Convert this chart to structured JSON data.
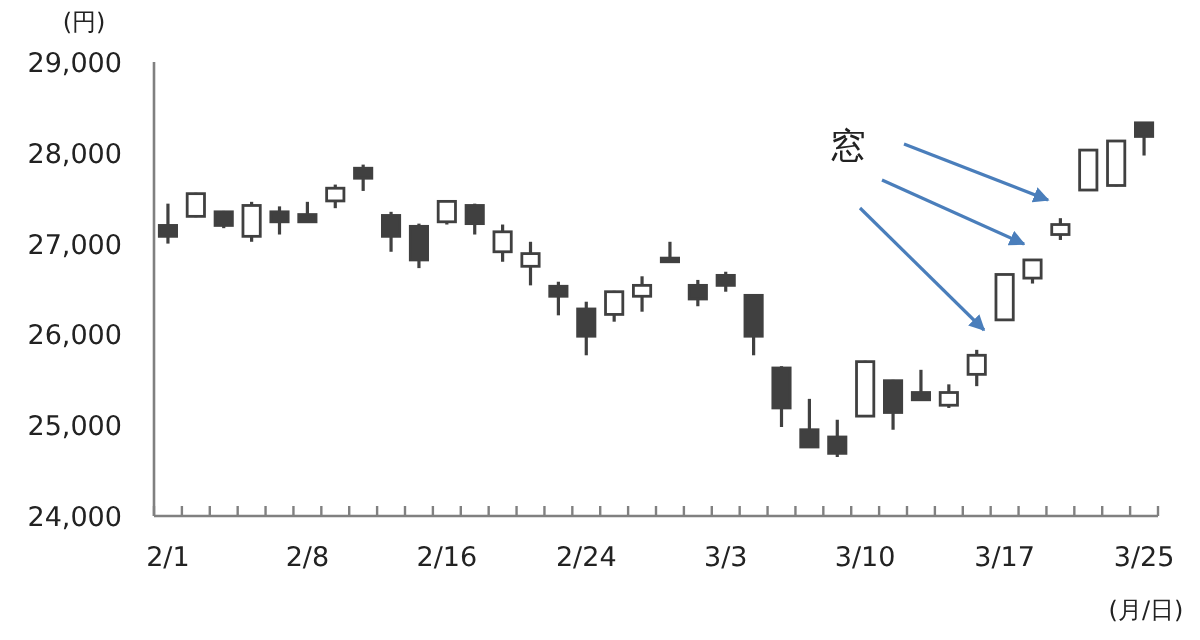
{
  "chart_data": {
    "type": "candlestick",
    "ylabel": "(円)",
    "xlabel": "(月/日)",
    "annotations": [
      "窓"
    ],
    "categories": [
      "2/1",
      null,
      null,
      null,
      null,
      "2/8",
      null,
      null,
      null,
      null,
      "2/16",
      null,
      null,
      null,
      null,
      "2/24",
      null,
      null,
      null,
      null,
      "3/3",
      null,
      null,
      null,
      null,
      "3/10",
      null,
      null,
      null,
      null,
      "3/17",
      null,
      null,
      null,
      null,
      "3/25"
    ],
    "ohlc": [
      [
        27200,
        27440,
        27000,
        27080
      ],
      [
        27300,
        27560,
        27290,
        27550
      ],
      [
        27350,
        27360,
        27170,
        27200
      ],
      [
        27080,
        27460,
        27020,
        27420
      ],
      [
        27350,
        27410,
        27100,
        27240
      ],
      [
        27320,
        27460,
        27240,
        27240
      ],
      [
        27470,
        27650,
        27390,
        27610
      ],
      [
        27830,
        27870,
        27580,
        27720
      ],
      [
        27310,
        27350,
        26910,
        27080
      ],
      [
        27190,
        27220,
        26730,
        26820
      ],
      [
        27240,
        27465,
        27210,
        27465
      ],
      [
        27420,
        27440,
        27100,
        27220
      ],
      [
        26910,
        27210,
        26800,
        27130
      ],
      [
        26750,
        27020,
        26540,
        26890
      ],
      [
        26530,
        26580,
        26210,
        26420
      ],
      [
        26280,
        26360,
        25770,
        25980
      ],
      [
        26220,
        26480,
        26140,
        26470
      ],
      [
        26420,
        26640,
        26250,
        26540
      ],
      [
        26840,
        27020,
        26800,
        26800
      ],
      [
        26540,
        26600,
        26310,
        26390
      ],
      [
        26650,
        26690,
        26470,
        26540
      ],
      [
        26430,
        26440,
        25770,
        25980
      ],
      [
        25630,
        25650,
        24980,
        25190
      ],
      [
        24950,
        25290,
        24760,
        24760
      ],
      [
        24870,
        25060,
        24650,
        24690
      ],
      [
        25100,
        25710,
        25090,
        25700
      ],
      [
        25490,
        25500,
        24950,
        25140
      ],
      [
        25360,
        25610,
        25280,
        25280
      ],
      [
        25220,
        25450,
        25190,
        25360
      ],
      [
        25560,
        25830,
        25430,
        25770
      ],
      [
        26160,
        26660,
        26160,
        26660
      ],
      [
        26620,
        26820,
        26560,
        26820
      ],
      [
        27100,
        27280,
        27040,
        27210
      ],
      [
        27590,
        28030,
        27590,
        28030
      ],
      [
        27640,
        28130,
        27630,
        28130
      ],
      [
        28330,
        28330,
        27970,
        28180
      ]
    ],
    "ylim": [
      24000,
      29000
    ],
    "yticks": [
      {
        "value": 24000,
        "label": "24,000"
      },
      {
        "value": 25000,
        "label": "25,000"
      },
      {
        "value": 26000,
        "label": "26,000"
      },
      {
        "value": 27000,
        "label": "27,000"
      },
      {
        "value": 28000,
        "label": "28,000"
      },
      {
        "value": 29000,
        "label": "29,000"
      }
    ]
  }
}
